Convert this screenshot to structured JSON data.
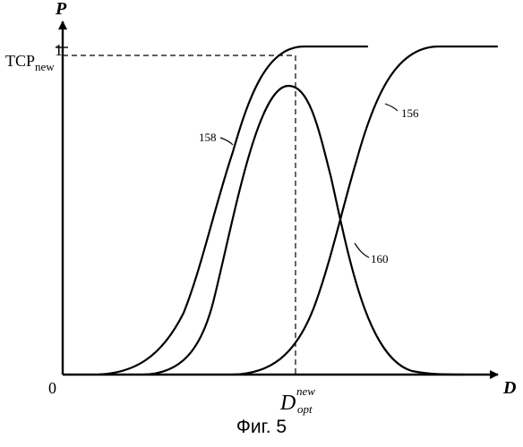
{
  "figure": {
    "y_axis_label": "P",
    "x_axis_label": "D",
    "origin_label": "0",
    "tick_one_label": "1",
    "tcp_label_main": "TCP",
    "tcp_label_sub": "new",
    "dopt_main": "D",
    "dopt_sup": "new",
    "dopt_sub": "opt",
    "curve_158_label": "158",
    "curve_156_label": "156",
    "curve_160_label": "160",
    "caption": "Фиг. 5"
  },
  "colors": {
    "line": "#000000",
    "background": "#ffffff"
  }
}
